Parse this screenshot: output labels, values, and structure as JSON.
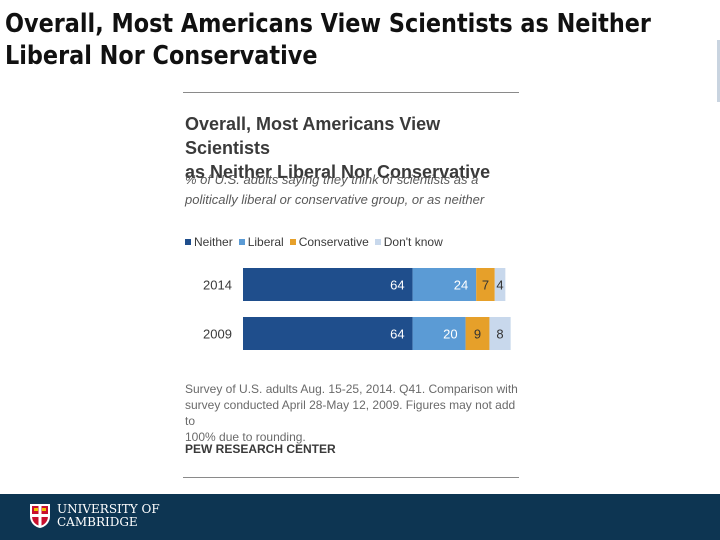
{
  "slide": {
    "title_line1": "Overall, Most Americans View Scientists as Neither",
    "title_line2": "Liberal Nor Conservative"
  },
  "figure": {
    "title_line1": "Overall, Most Americans View Scientists",
    "title_line2": "as Neither Liberal Nor Conservative",
    "subtitle_line1": "% of U.S. adults saying they think of scientists as a",
    "subtitle_line2": "politically liberal or conservative group, or as neither",
    "note_line1": "Survey of U.S. adults Aug. 15-25, 2014. Q41. Comparison with",
    "note_line2": "survey conducted April 28-May 12, 2009. Figures may not add to",
    "note_line3": "100% due to rounding.",
    "source": "PEW RESEARCH CENTER"
  },
  "chart_data": {
    "type": "bar",
    "orientation": "horizontal-stacked",
    "title": "Overall, Most Americans View Scientists as Neither Liberal Nor Conservative",
    "subtitle": "% of U.S. adults saying they think of scientists as a politically liberal or conservative group, or as neither",
    "categories": [
      "2014",
      "2009"
    ],
    "series": [
      {
        "name": "Neither",
        "color": "#1f4e8c",
        "values": [
          64,
          64
        ]
      },
      {
        "name": "Liberal",
        "color": "#5b9bd5",
        "values": [
          24,
          20
        ]
      },
      {
        "name": "Conservative",
        "color": "#e6a02a",
        "values": [
          7,
          9
        ]
      },
      {
        "name": "Don't know",
        "color": "#c8d8ec",
        "values": [
          4,
          8
        ]
      }
    ],
    "legend_position": "top-left",
    "xlim": [
      0,
      100
    ],
    "grid": false
  },
  "footer": {
    "line1": "UNIVERSITY OF",
    "line2": "CAMBRIDGE",
    "background": "#0d3552"
  }
}
